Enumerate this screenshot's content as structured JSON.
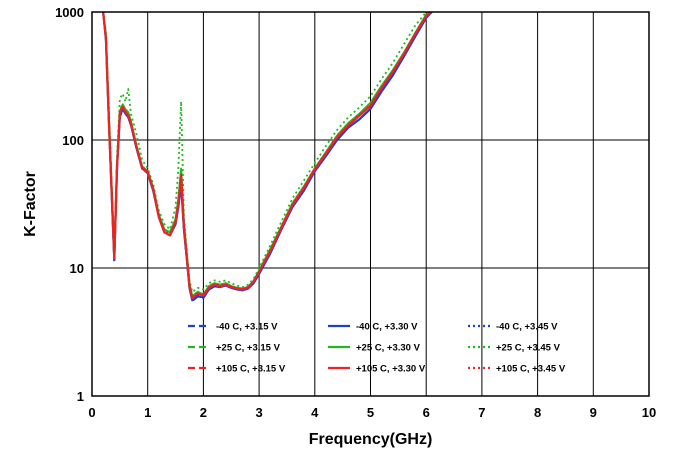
{
  "chart_data": {
    "type": "line",
    "title": "",
    "xlabel": "Frequency(GHz)",
    "ylabel": "K-Factor",
    "xlim": [
      0,
      10
    ],
    "ylim": [
      1,
      1000
    ],
    "y_scale": "log",
    "grid": true,
    "legend_placement": "bottom-center",
    "x_ticks": [
      "0",
      "1",
      "2",
      "3",
      "4",
      "5",
      "6",
      "7",
      "8",
      "9",
      "10"
    ],
    "y_ticks": [
      "1",
      "10",
      "100",
      "1000"
    ],
    "x": [
      0.2,
      0.25,
      0.3,
      0.35,
      0.4,
      0.45,
      0.5,
      0.55,
      0.6,
      0.65,
      0.7,
      0.8,
      0.9,
      1.0,
      1.1,
      1.2,
      1.3,
      1.4,
      1.5,
      1.55,
      1.6,
      1.65,
      1.7,
      1.75,
      1.8,
      1.9,
      2.0,
      2.1,
      2.2,
      2.3,
      2.4,
      2.5,
      2.6,
      2.7,
      2.8,
      2.9,
      3.0,
      3.2,
      3.4,
      3.6,
      3.8,
      4.0,
      4.2,
      4.4,
      4.6,
      4.8,
      5.0,
      5.2,
      5.4,
      5.6,
      5.8,
      6.0,
      6.1
    ],
    "series": [
      {
        "name": "-40 C, +3.15 V",
        "color": "#1f3fcf",
        "dash": "dashed",
        "values": [
          1000,
          600,
          150,
          40,
          11,
          60,
          150,
          175,
          160,
          150,
          130,
          85,
          60,
          55,
          40,
          25,
          19,
          18,
          22,
          30,
          45,
          20,
          12,
          7,
          5.5,
          6,
          5.8,
          6.8,
          7.2,
          7.1,
          7.3,
          7.0,
          6.8,
          6.7,
          6.9,
          7.6,
          9,
          13,
          20,
          30,
          40,
          57,
          75,
          100,
          125,
          145,
          175,
          240,
          320,
          450,
          640,
          900,
          1000
        ]
      },
      {
        "name": "-40 C, +3.30 V",
        "color": "#1f3fcf",
        "dash": "solid",
        "values": [
          1000,
          610,
          152,
          41,
          11.5,
          61,
          152,
          176,
          161,
          151,
          131,
          86,
          60,
          55,
          40,
          25,
          19,
          18,
          22,
          30,
          45,
          20,
          12,
          7,
          5.6,
          6,
          5.9,
          6.8,
          7.2,
          7.1,
          7.3,
          7.0,
          6.8,
          6.7,
          6.9,
          7.6,
          9,
          13,
          20,
          30,
          40,
          57,
          75,
          100,
          125,
          145,
          175,
          240,
          320,
          450,
          640,
          900,
          1000
        ]
      },
      {
        "name": "-40 C, +3.45 V",
        "color": "#1f3fcf",
        "dash": "dotted",
        "values": [
          1000,
          620,
          155,
          42,
          12,
          62,
          155,
          178,
          162,
          152,
          132,
          87,
          61,
          56,
          41,
          25,
          19,
          18,
          22,
          30,
          45,
          20,
          12,
          7,
          5.7,
          6.1,
          6,
          6.9,
          7.2,
          7.1,
          7.3,
          7.0,
          6.8,
          6.7,
          6.9,
          7.6,
          9,
          13,
          20,
          30,
          40,
          57,
          75,
          100,
          125,
          145,
          175,
          240,
          320,
          450,
          640,
          900,
          1000
        ]
      },
      {
        "name": "+25 C, +3.15 V",
        "color": "#22b822",
        "dash": "dashed",
        "values": [
          1000,
          650,
          160,
          45,
          12,
          65,
          170,
          190,
          175,
          165,
          140,
          90,
          62,
          57,
          42,
          26,
          20,
          19,
          24,
          34,
          60,
          22,
          13,
          7.5,
          6,
          6.5,
          6.2,
          7.2,
          7.6,
          7.4,
          7.6,
          7.2,
          7.0,
          6.9,
          7.1,
          7.9,
          9.5,
          14,
          21,
          32,
          43,
          60,
          80,
          108,
          135,
          160,
          195,
          265,
          350,
          480,
          680,
          950,
          1000
        ]
      },
      {
        "name": "+25 C, +3.30 V",
        "color": "#22b822",
        "dash": "solid",
        "values": [
          1000,
          640,
          158,
          44,
          12,
          64,
          168,
          188,
          173,
          163,
          139,
          89,
          62,
          57,
          42,
          26,
          20,
          19,
          24,
          34,
          58,
          22,
          13,
          7.5,
          6,
          6.5,
          6.2,
          7.2,
          7.6,
          7.4,
          7.6,
          7.2,
          7.0,
          6.9,
          7.1,
          7.9,
          9.5,
          14,
          21,
          32,
          43,
          60,
          80,
          108,
          135,
          160,
          195,
          265,
          350,
          480,
          680,
          950,
          1000
        ]
      },
      {
        "name": "+25 C, +3.45 V",
        "color": "#22b822",
        "dash": "dotted",
        "values": [
          1000,
          700,
          200,
          50,
          14,
          75,
          210,
          230,
          200,
          250,
          160,
          110,
          70,
          60,
          45,
          28,
          22,
          20,
          30,
          60,
          200,
          25,
          14,
          8,
          6.5,
          7,
          6.8,
          7.6,
          8,
          7.8,
          8,
          7.6,
          7.3,
          7.1,
          7.4,
          8.2,
          10,
          15,
          23,
          35,
          48,
          66,
          90,
          120,
          150,
          180,
          220,
          300,
          400,
          560,
          780,
          1000,
          1000
        ]
      },
      {
        "name": "+105 C, +3.15 V",
        "color": "#ee2222",
        "dash": "dashed",
        "values": [
          1000,
          620,
          155,
          42,
          12,
          62,
          160,
          180,
          165,
          155,
          133,
          87,
          61,
          56,
          41,
          25,
          19,
          18,
          23,
          32,
          50,
          21,
          12.5,
          7.2,
          5.8,
          6.3,
          6.1,
          7.0,
          7.4,
          7.2,
          7.4,
          7.1,
          6.9,
          6.8,
          7.0,
          7.8,
          9.3,
          13.5,
          20.5,
          31,
          42,
          59,
          78,
          105,
          130,
          155,
          185,
          255,
          340,
          470,
          670,
          930,
          1000
        ]
      },
      {
        "name": "+105 C, +3.30 V",
        "color": "#ee2222",
        "dash": "solid",
        "values": [
          1000,
          625,
          156,
          43,
          12,
          63,
          162,
          182,
          166,
          156,
          134,
          88,
          61,
          56,
          41,
          25,
          19,
          18,
          23,
          32,
          52,
          21,
          12.5,
          7.2,
          5.8,
          6.3,
          6.1,
          7.0,
          7.4,
          7.2,
          7.4,
          7.1,
          6.9,
          6.8,
          7.0,
          7.8,
          9.3,
          13.5,
          20.5,
          31,
          42,
          59,
          78,
          105,
          130,
          155,
          185,
          255,
          340,
          470,
          670,
          930,
          1000
        ]
      },
      {
        "name": "+105 C, +3.45 V",
        "color": "#ee2222",
        "dash": "dotted",
        "values": [
          1000,
          630,
          158,
          43,
          12.5,
          64,
          165,
          185,
          168,
          158,
          136,
          89,
          62,
          57,
          42,
          26,
          19.5,
          18.5,
          23,
          33,
          54,
          21.5,
          12.8,
          7.3,
          5.9,
          6.4,
          6.2,
          7.1,
          7.5,
          7.3,
          7.5,
          7.2,
          7.0,
          6.9,
          7.1,
          7.9,
          9.4,
          13.8,
          21,
          32,
          43,
          60,
          80,
          107,
          133,
          158,
          190,
          260,
          345,
          475,
          675,
          940,
          1000
        ]
      }
    ]
  }
}
